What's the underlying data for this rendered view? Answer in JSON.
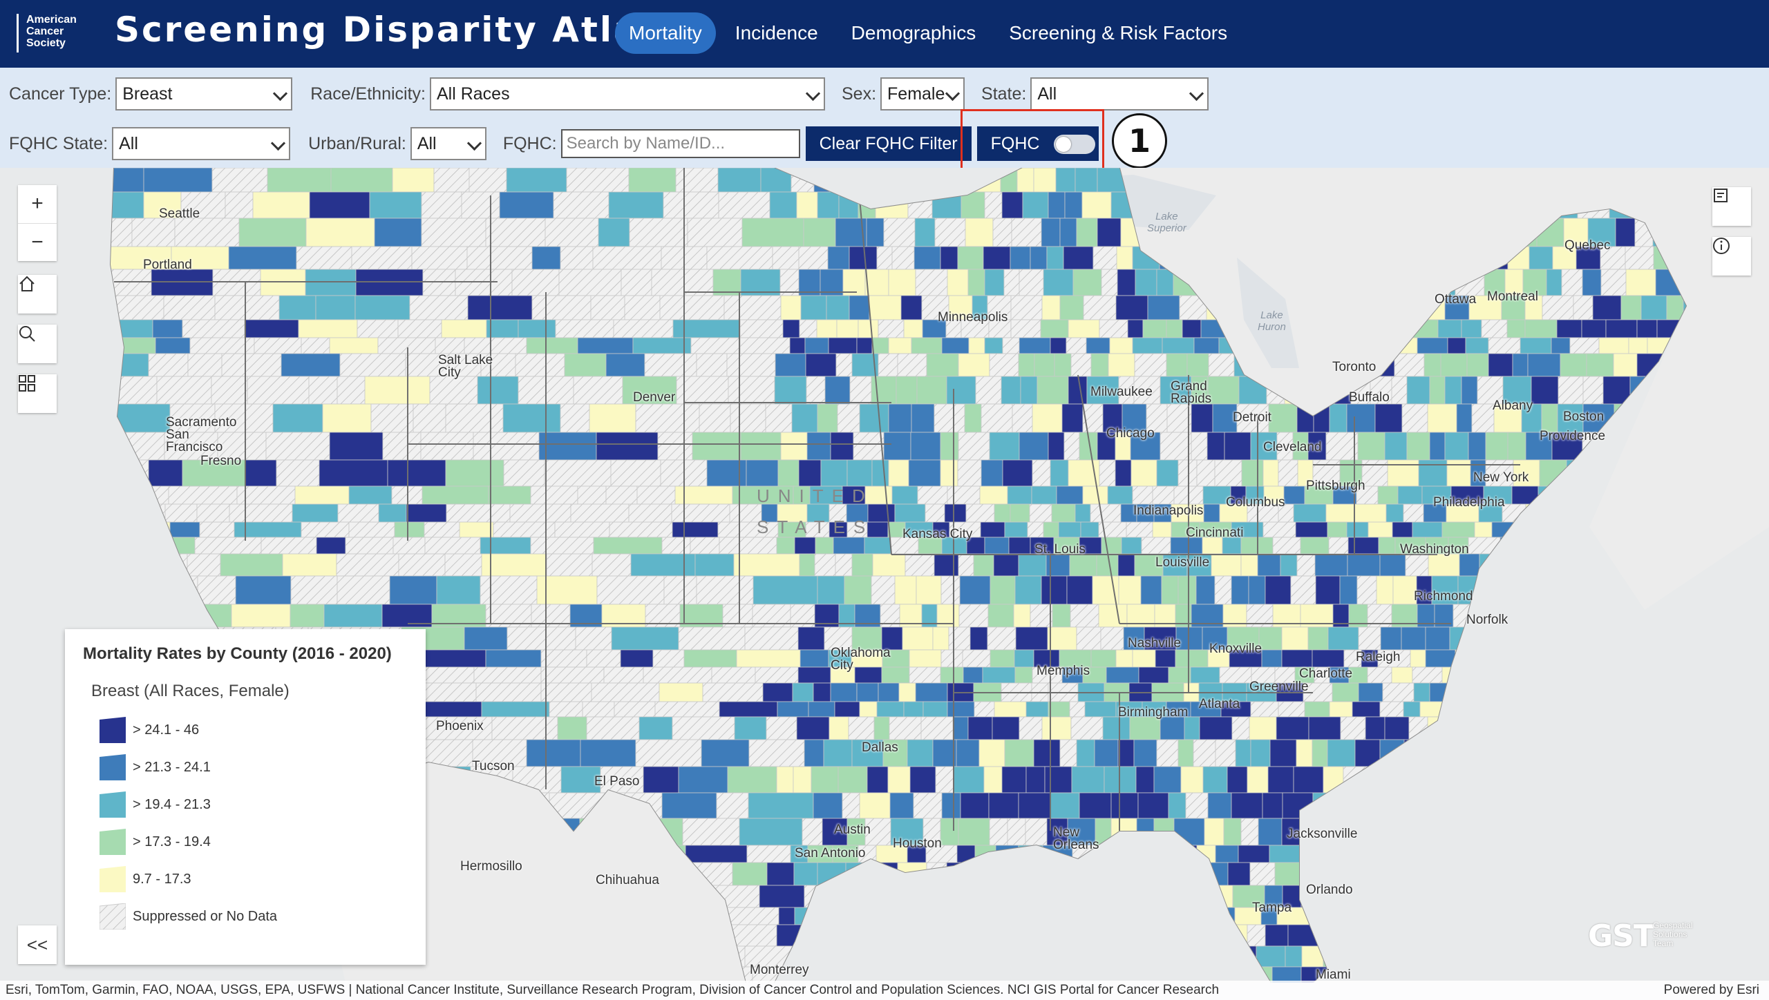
{
  "header": {
    "logo_text": "American\nCancer\nSociety",
    "app_title": "Screening Disparity Atlas",
    "tabs": [
      {
        "label": "Mortality",
        "active": true
      },
      {
        "label": "Incidence",
        "active": false
      },
      {
        "label": "Demographics",
        "active": false
      },
      {
        "label": "Screening & Risk Factors",
        "active": false
      }
    ]
  },
  "filters": {
    "cancer_type": {
      "label": "Cancer Type:",
      "value": "Breast"
    },
    "race": {
      "label": "Race/Ethnicity:",
      "value": "All Races"
    },
    "sex": {
      "label": "Sex:",
      "value": "Female"
    },
    "state": {
      "label": "State:",
      "value": "All"
    },
    "fqhc_state": {
      "label": "FQHC State:",
      "value": "All"
    },
    "urban_rural": {
      "label": "Urban/Rural:",
      "value": "All"
    },
    "fqhc_search": {
      "label": "FQHC:",
      "placeholder": "Search by Name/ID..."
    },
    "clear_button": "Clear FQHC Filter",
    "fqhc_toggle": {
      "label": "FQHC",
      "on": false
    },
    "annotation_number": "1"
  },
  "map": {
    "country_label_1": "UNITED",
    "country_label_2": "STATES",
    "water": [
      {
        "text": "Lake\nSuperior"
      },
      {
        "text": "Lake\nHuron"
      }
    ],
    "cities": [
      "Seattle",
      "Portland",
      "Sacramento",
      "San\nFrancisco",
      "Fresno",
      "Salt Lake\nCity",
      "Denver",
      "Phoenix",
      "Tucson",
      "El Paso",
      "Hermosillo",
      "Chihuahua",
      "Monterrey",
      "Minneapolis",
      "Milwaukee",
      "Grand\nRapids",
      "Chicago",
      "Detroit",
      "Toronto",
      "Buffalo",
      "Ottawa",
      "Montreal",
      "Quebec",
      "Albany",
      "Boston",
      "Providence",
      "New York",
      "Philadelphia",
      "Pittsburgh",
      "Cleveland",
      "Columbus",
      "Indianapolis",
      "Cincinnati",
      "Louisville",
      "St. Louis",
      "Kansas City",
      "Oklahoma\nCity",
      "Dallas",
      "Austin",
      "San Antonio",
      "Houston",
      "New\nOrleans",
      "Memphis",
      "Nashville",
      "Knoxville",
      "Birmingham",
      "Atlanta",
      "Charlotte",
      "Greenville",
      "Raleigh",
      "Richmond",
      "Norfolk",
      "Washington",
      "Jacksonville",
      "Orlando",
      "Tampa",
      "Miami"
    ],
    "colors": {
      "class5": "#27338e",
      "class4": "#3e7cba",
      "class3": "#5fb5c9",
      "class2": "#a6dbb0",
      "class1": "#fbf9c3",
      "nodata": "#f2f2f2",
      "ocean": "#e8eaeb"
    }
  },
  "legend": {
    "title": "Mortality Rates by County (2016 - 2020)",
    "subtitle": "Breast (All Races, Female)",
    "items": [
      {
        "label": "> 24.1 - 46",
        "color": "#27338e"
      },
      {
        "label": "> 21.3 - 24.1",
        "color": "#3e7cba"
      },
      {
        "label": "> 19.4 - 21.3",
        "color": "#5fb5c9"
      },
      {
        "label": "> 17.3 - 19.4",
        "color": "#a6dbb0"
      },
      {
        "label": "9.7 - 17.3",
        "color": "#fbf9c3"
      },
      {
        "label": "Suppressed or No Data",
        "color": "hatch"
      }
    ],
    "collapse_label": "<<"
  },
  "footer": {
    "attribution": "Esri, TomTom, Garmin, FAO, NOAA, USGS, EPA, USFWS | National Cancer Institute, Surveillance Research Program, Division of Cancer Control and Population Sciences. NCI GIS Portal for Cancer Research",
    "powered_by": "Powered by Esri",
    "gst_logo": "GST",
    "gst_sub": "Geospatial\nSolutions\nTeam"
  }
}
